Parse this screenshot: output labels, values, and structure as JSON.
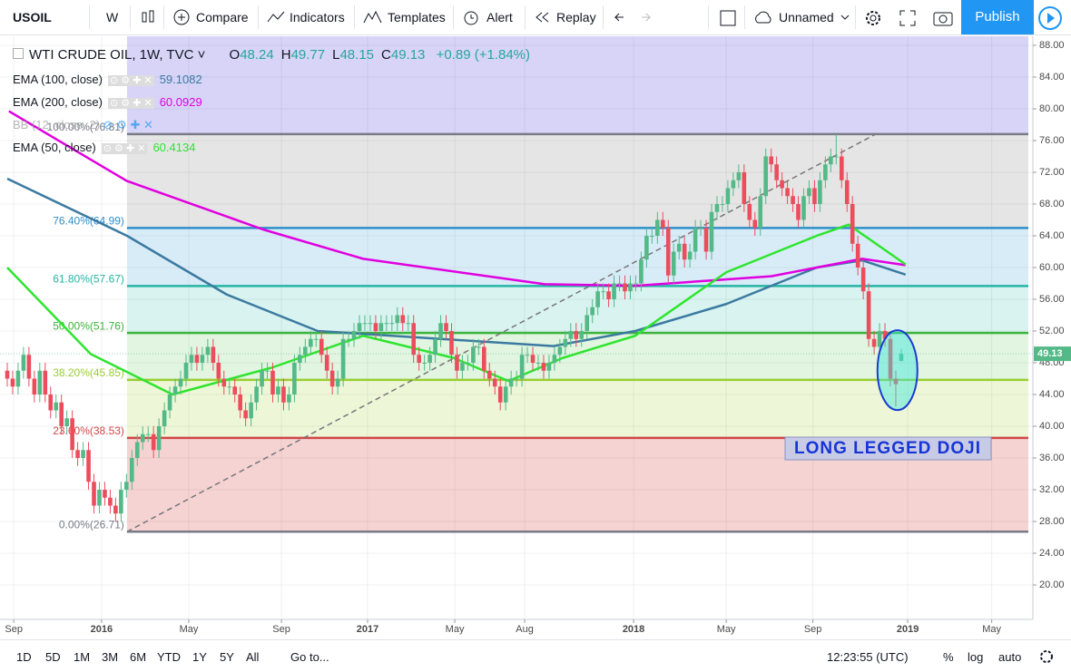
{
  "toolbar": {
    "symbol": "USOIL",
    "interval": "W",
    "buttons": [
      "Compare",
      "Indicators",
      "Templates",
      "Alert",
      "Replay"
    ],
    "layout": "Unnamed",
    "publish": "Publish"
  },
  "legend": {
    "title": "WTI CRUDE OIL, 1W, TVC",
    "ohlc": [
      {
        "label": "O",
        "value": 48.24
      },
      {
        "label": "H",
        "value": 49.77
      },
      {
        "label": "L",
        "value": 48.15
      },
      {
        "label": "C",
        "value": 49.13
      }
    ],
    "change": "+0.89",
    "change_pct": "(+1.84%)",
    "hidden_indicator": "BB (12, close, 2)"
  },
  "chart_data": {
    "type": "candlestick",
    "open": [
      47,
      46,
      45,
      47,
      49,
      46,
      44,
      47,
      44,
      42,
      43,
      40,
      41,
      37,
      36,
      37,
      33,
      30,
      32,
      31,
      30,
      29,
      32,
      33,
      36,
      38,
      39,
      39,
      37,
      40,
      42,
      44,
      45,
      46,
      48,
      49,
      48,
      49,
      50,
      48,
      46,
      45,
      45,
      44,
      42,
      41,
      43,
      45,
      47,
      47,
      44,
      45,
      43,
      44,
      48,
      49,
      50,
      51,
      51,
      49,
      47,
      45,
      46,
      51,
      51,
      52,
      53,
      53,
      53,
      52,
      53,
      53,
      53,
      54,
      53,
      53,
      49,
      48,
      48,
      49,
      51,
      53,
      52,
      49,
      47,
      48,
      48,
      50,
      50,
      47,
      46,
      45,
      43,
      45,
      46,
      46,
      49,
      49,
      48,
      48,
      47,
      48,
      49,
      50,
      51,
      52,
      51,
      52,
      54,
      55,
      57,
      57,
      56,
      58,
      58,
      57,
      58,
      58,
      61,
      64,
      64,
      66,
      65,
      59,
      62,
      63,
      61,
      62,
      65,
      65,
      62,
      67,
      68,
      68,
      70,
      71,
      72,
      68,
      66,
      65,
      69,
      74,
      73,
      71,
      70,
      69,
      68,
      66,
      69,
      70,
      68,
      71,
      73,
      74,
      74,
      71,
      68,
      63,
      60,
      57,
      51,
      50,
      52,
      51,
      46,
      48.24
    ],
    "high": [
      48,
      47,
      48,
      50,
      50,
      47,
      48,
      48,
      45,
      44,
      44,
      42,
      42,
      38,
      38,
      38,
      34,
      33,
      33,
      32,
      31,
      33,
      34,
      37,
      39,
      40,
      40,
      40,
      41,
      43,
      45,
      46,
      47,
      49,
      50,
      50,
      50,
      51,
      51,
      49,
      47,
      46,
      46,
      45,
      43,
      44,
      46,
      48,
      48,
      48,
      46,
      46,
      45,
      49,
      50,
      51,
      52,
      52,
      52,
      50,
      48,
      47,
      52,
      52,
      53,
      54,
      54,
      54,
      54,
      54,
      54,
      54,
      55,
      55,
      54,
      54,
      50,
      49,
      50,
      52,
      54,
      54,
      53,
      50,
      49,
      49,
      51,
      51,
      51,
      48,
      47,
      46,
      46,
      47,
      47,
      50,
      50,
      50,
      49,
      49,
      49,
      50,
      51,
      52,
      53,
      53,
      53,
      55,
      56,
      58,
      58,
      58,
      59,
      59,
      59,
      59,
      59,
      62,
      65,
      65,
      67,
      67,
      66,
      63,
      64,
      64,
      63,
      66,
      66,
      66,
      68,
      69,
      69,
      71,
      72,
      73,
      73,
      69,
      67,
      70,
      75,
      75,
      74,
      72,
      71,
      70,
      69,
      70,
      71,
      71,
      72,
      74,
      75,
      76.81,
      75,
      72,
      69,
      64,
      61,
      58,
      52,
      53,
      53,
      52,
      47,
      49.77
    ],
    "low": [
      45,
      44,
      44,
      46,
      45,
      43,
      43,
      43,
      41,
      41,
      39,
      39,
      36,
      35,
      35,
      32,
      29,
      29,
      30,
      29,
      28,
      28,
      31,
      32,
      35,
      37,
      38,
      36,
      36,
      39,
      41,
      43,
      44,
      45,
      47,
      47,
      47,
      48,
      47,
      45,
      44,
      44,
      43,
      41,
      40,
      40,
      42,
      44,
      46,
      43,
      43,
      42,
      42,
      43,
      47,
      48,
      49,
      50,
      48,
      46,
      44,
      44,
      45,
      50,
      50,
      51,
      52,
      52,
      51,
      51,
      52,
      52,
      52,
      52,
      52,
      48,
      47,
      47,
      47,
      48,
      50,
      51,
      48,
      46,
      46,
      47,
      47,
      49,
      46,
      45,
      44,
      42,
      42,
      44,
      45,
      45,
      48,
      47,
      47,
      46,
      46,
      47,
      48,
      49,
      50,
      50,
      50,
      51,
      53,
      54,
      56,
      55,
      55,
      57,
      56,
      56,
      57,
      57,
      60,
      63,
      63,
      64,
      58,
      58,
      61,
      60,
      60,
      61,
      64,
      61,
      61,
      66,
      67,
      67,
      69,
      70,
      67,
      65,
      64,
      64,
      68,
      72,
      70,
      69,
      68,
      67,
      65,
      65,
      68,
      67,
      67,
      70,
      72,
      73,
      70,
      67,
      62,
      59,
      56,
      50,
      49,
      49,
      50,
      45,
      42.5,
      48.15
    ],
    "close": [
      46,
      45,
      47,
      49,
      46,
      44,
      47,
      44,
      42,
      43,
      40,
      41,
      37,
      36,
      37,
      33,
      30,
      32,
      31,
      30,
      29,
      32,
      33,
      36,
      38,
      39,
      39,
      37,
      40,
      42,
      44,
      45,
      46,
      48,
      49,
      48,
      49,
      50,
      48,
      46,
      45,
      45,
      44,
      42,
      41,
      43,
      45,
      47,
      47,
      44,
      45,
      43,
      44,
      48,
      49,
      50,
      51,
      51,
      49,
      47,
      45,
      46,
      51,
      51,
      52,
      53,
      53,
      53,
      52,
      53,
      53,
      53,
      54,
      53,
      53,
      49,
      48,
      48,
      49,
      51,
      53,
      52,
      49,
      47,
      48,
      48,
      50,
      50,
      47,
      46,
      45,
      43,
      45,
      46,
      46,
      49,
      49,
      48,
      48,
      47,
      48,
      49,
      50,
      51,
      52,
      51,
      52,
      54,
      55,
      57,
      57,
      56,
      58,
      58,
      57,
      58,
      58,
      61,
      64,
      64,
      66,
      65,
      59,
      62,
      63,
      61,
      62,
      65,
      65,
      62,
      67,
      68,
      68,
      70,
      71,
      72,
      68,
      66,
      65,
      69,
      74,
      73,
      71,
      70,
      69,
      68,
      66,
      69,
      70,
      68,
      71,
      73,
      74,
      74,
      71,
      68,
      63,
      60,
      57,
      51,
      50,
      52,
      51,
      46,
      45.3,
      49.13
    ],
    "up_color": "#53b987",
    "down_color": "#eb4d5c",
    "xlim": [
      -1.34,
      189.3
    ],
    "xticks": [
      {
        "value": 1.2,
        "label": "Sep"
      },
      {
        "value": 17.4,
        "label": "2016"
      },
      {
        "value": 33.5,
        "label": "May"
      },
      {
        "value": 50.6,
        "label": "Sep"
      },
      {
        "value": 66.5,
        "label": "2017"
      },
      {
        "value": 82.6,
        "label": "May"
      },
      {
        "value": 95.5,
        "label": "Aug"
      },
      {
        "value": 115.6,
        "label": "2018"
      },
      {
        "value": 132.7,
        "label": "May"
      },
      {
        "value": 148.7,
        "label": "Sep"
      },
      {
        "value": 166.2,
        "label": "2019"
      },
      {
        "value": 181.7,
        "label": "May"
      }
    ],
    "ylim": [
      15.66,
      89.14
    ],
    "yticks": [
      {
        "value": 88,
        "label": "88.00"
      },
      {
        "value": 84,
        "label": "84.00"
      },
      {
        "value": 80,
        "label": "80.00"
      },
      {
        "value": 76,
        "label": "76.00"
      },
      {
        "value": 72,
        "label": "72.00"
      },
      {
        "value": 68,
        "label": "68.00"
      },
      {
        "value": 64,
        "label": "64.00"
      },
      {
        "value": 60,
        "label": "60.00"
      },
      {
        "value": 56,
        "label": "56.00"
      },
      {
        "value": 52,
        "label": "52.00"
      },
      {
        "value": 48,
        "label": "48.00"
      },
      {
        "value": 44,
        "label": "44.00"
      },
      {
        "value": 40,
        "label": "40.00"
      },
      {
        "value": 36,
        "label": "36.00"
      },
      {
        "value": 32,
        "label": "32.00"
      },
      {
        "value": 28,
        "label": "28.00"
      },
      {
        "value": 24,
        "label": "24.00"
      },
      {
        "value": 20,
        "label": "20.00"
      }
    ],
    "grid": true,
    "last_price": {
      "value": 49.13,
      "label": "49.13"
    },
    "series": [
      {
        "name": "EMA (100, close)",
        "value": 59.1082,
        "color": "#3b7aa0",
        "x": [
          0,
          22.1,
          40.5,
          57.3,
          82.4,
          100.8,
          115.9,
          132.7,
          149.4,
          157.8,
          165.8
        ],
        "values": [
          71.2,
          64,
          56.6,
          52,
          50.9,
          50.1,
          52,
          55.4,
          60,
          60.9,
          59.1
        ]
      },
      {
        "name": "EMA (200, close)",
        "value": 60.0929,
        "color": "#e000e0",
        "x": [
          0.3,
          22.1,
          47.2,
          65.7,
          99.2,
          115.9,
          141,
          157.8,
          165.8
        ],
        "values": [
          79.7,
          70.9,
          64.8,
          61.1,
          57.9,
          57.7,
          58.9,
          61.1,
          60.3
        ]
      },
      {
        "name": "EMA (50, close)",
        "value": 60.4134,
        "color": "#2ee52e",
        "x": [
          0,
          15.4,
          30.5,
          48.9,
          65.7,
          82.4,
          92.5,
          102.5,
          115.9,
          132.7,
          149.4,
          155.3,
          165.8
        ],
        "values": [
          60,
          49.1,
          44,
          47.4,
          51.4,
          48.6,
          45.7,
          48.6,
          51.4,
          59.4,
          64,
          65.4,
          60.4
        ]
      }
    ],
    "fib": {
      "start": 22.1,
      "top_color": "rgba(110,100,230,0.28)",
      "levels": [
        {
          "value": 76.81,
          "label": "100.00%(76.81)",
          "color": "#787b86",
          "fill": "rgba(150,150,150,0.25)"
        },
        {
          "value": 64.99,
          "label": "76.40%(64.99)",
          "color": "#2f8fc8",
          "fill": "rgba(60,160,220,0.2)"
        },
        {
          "value": 57.67,
          "label": "61.80%(57.67)",
          "color": "#26b5a5",
          "fill": "rgba(40,190,170,0.18)"
        },
        {
          "value": 51.76,
          "label": "50.00%(51.76)",
          "color": "#3cb43c",
          "fill": "rgba(70,190,70,0.16)"
        },
        {
          "value": 45.85,
          "label": "38.20%(45.85)",
          "color": "#9acd32",
          "fill": "rgba(170,210,60,0.2)"
        },
        {
          "value": 38.53,
          "label": "23.60%(38.53)",
          "color": "#d04848",
          "fill": "rgba(220,80,80,0.25)"
        },
        {
          "value": 26.71,
          "label": "0.00%(26.71)",
          "color": "#787b86",
          "fill": null
        }
      ]
    },
    "trend_line": {
      "x": [
        22.1,
        160.3
      ],
      "y": [
        26.71,
        76.81
      ]
    },
    "annotation": "LONG LEGGED DOJI"
  },
  "bottom_bar": {
    "ranges": [
      "1D",
      "5D",
      "1M",
      "3M",
      "6M",
      "YTD",
      "1Y",
      "5Y",
      "All"
    ],
    "goto": "Go to...",
    "time": "12:23:55 (UTC)",
    "options": [
      "%",
      "log",
      "auto"
    ]
  }
}
